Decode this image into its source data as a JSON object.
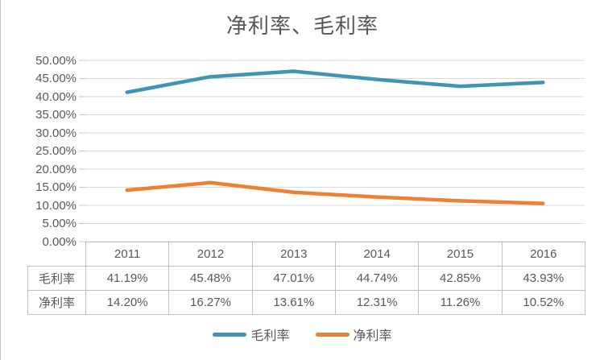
{
  "title": "净利率、毛利率",
  "colors": {
    "gross_margin_line": "#3E96B4",
    "net_margin_line": "#ED8032",
    "gridline": "#DADADA",
    "tick": "#C6C6C6",
    "text": "#595959",
    "table_border": "#BFBFBF"
  },
  "chart_data": {
    "type": "line",
    "title": "净利率、毛利率",
    "categories": [
      "2011",
      "2012",
      "2013",
      "2014",
      "2015",
      "2016"
    ],
    "series": [
      {
        "name": "毛利率",
        "values": [
          41.19,
          45.48,
          47.01,
          44.74,
          42.85,
          43.93
        ],
        "color": "#3E96B4"
      },
      {
        "name": "净利率",
        "values": [
          14.2,
          16.27,
          13.61,
          12.31,
          11.26,
          10.52
        ],
        "color": "#ED8032"
      }
    ],
    "xlabel": "",
    "ylabel": "",
    "ylim": [
      0,
      50
    ],
    "y_step": 5,
    "y_tick_labels_top_down": [
      "50.00%",
      "45.00%",
      "40.00%",
      "35.00%",
      "30.00%",
      "25.00%",
      "20.00%",
      "15.00%",
      "10.00%",
      "5.00%",
      "0.00%"
    ],
    "grid": true,
    "legend_position": "bottom",
    "data_table_shown": true
  },
  "table": {
    "corner_label": "",
    "columns": [
      "2011",
      "2012",
      "2013",
      "2014",
      "2015",
      "2016"
    ],
    "rows": [
      {
        "label": "毛利率",
        "values": [
          "41.19%",
          "45.48%",
          "47.01%",
          "44.74%",
          "42.85%",
          "43.93%"
        ]
      },
      {
        "label": "净利率",
        "values": [
          "14.20%",
          "16.27%",
          "13.61%",
          "12.31%",
          "11.26%",
          "10.52%"
        ]
      }
    ]
  },
  "legend": {
    "items": [
      {
        "label": "毛利率",
        "color": "#3E96B4"
      },
      {
        "label": "净利率",
        "color": "#ED8032"
      }
    ]
  }
}
